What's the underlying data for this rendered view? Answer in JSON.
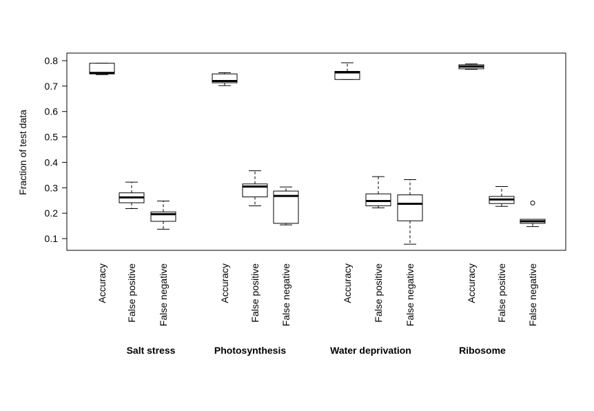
{
  "chart_data": {
    "type": "boxplot",
    "title": "",
    "ylabel": "Fraction of test data",
    "ylim": [
      0.05,
      0.83
    ],
    "yticks": [
      0.1,
      0.2,
      0.3,
      0.4,
      0.5,
      0.6,
      0.7,
      0.8
    ],
    "ytick_labels": [
      "0.1",
      "0.2",
      "0.3",
      "0.4",
      "0.5",
      "0.6",
      "0.7",
      "0.8"
    ],
    "grid": false,
    "groups": [
      {
        "name": "Salt stress",
        "boxes": [
          {
            "label": "Accuracy",
            "min": 0.745,
            "q1": 0.748,
            "median": 0.752,
            "q3": 0.79,
            "max": 0.79,
            "outliers": []
          },
          {
            "label": "False positive",
            "min": 0.218,
            "q1": 0.241,
            "median": 0.262,
            "q3": 0.28,
            "max": 0.322,
            "outliers": []
          },
          {
            "label": "False negative",
            "min": 0.137,
            "q1": 0.168,
            "median": 0.196,
            "q3": 0.205,
            "max": 0.248,
            "outliers": []
          }
        ]
      },
      {
        "name": "Photosynthesis",
        "boxes": [
          {
            "label": "Accuracy",
            "min": 0.702,
            "q1": 0.713,
            "median": 0.72,
            "q3": 0.748,
            "max": 0.753,
            "outliers": []
          },
          {
            "label": "False positive",
            "min": 0.229,
            "q1": 0.264,
            "median": 0.305,
            "q3": 0.315,
            "max": 0.367,
            "outliers": []
          },
          {
            "label": "False negative",
            "min": 0.154,
            "q1": 0.16,
            "median": 0.268,
            "q3": 0.287,
            "max": 0.303,
            "outliers": []
          }
        ]
      },
      {
        "name": "Water deprivation",
        "boxes": [
          {
            "label": "Accuracy",
            "min": 0.726,
            "q1": 0.726,
            "median": 0.754,
            "q3": 0.758,
            "max": 0.792,
            "outliers": []
          },
          {
            "label": "False positive",
            "min": 0.221,
            "q1": 0.229,
            "median": 0.248,
            "q3": 0.276,
            "max": 0.344,
            "outliers": []
          },
          {
            "label": "False negative",
            "min": 0.078,
            "q1": 0.17,
            "median": 0.237,
            "q3": 0.272,
            "max": 0.332,
            "outliers": []
          }
        ]
      },
      {
        "name": "Ribosome",
        "boxes": [
          {
            "label": "Accuracy",
            "min": 0.766,
            "q1": 0.768,
            "median": 0.777,
            "q3": 0.784,
            "max": 0.787,
            "outliers": []
          },
          {
            "label": "False positive",
            "min": 0.227,
            "q1": 0.238,
            "median": 0.254,
            "q3": 0.266,
            "max": 0.305,
            "outliers": []
          },
          {
            "label": "False negative",
            "min": 0.147,
            "q1": 0.16,
            "median": 0.168,
            "q3": 0.176,
            "max": 0.176,
            "outliers": [
              0.24
            ]
          }
        ]
      }
    ]
  }
}
